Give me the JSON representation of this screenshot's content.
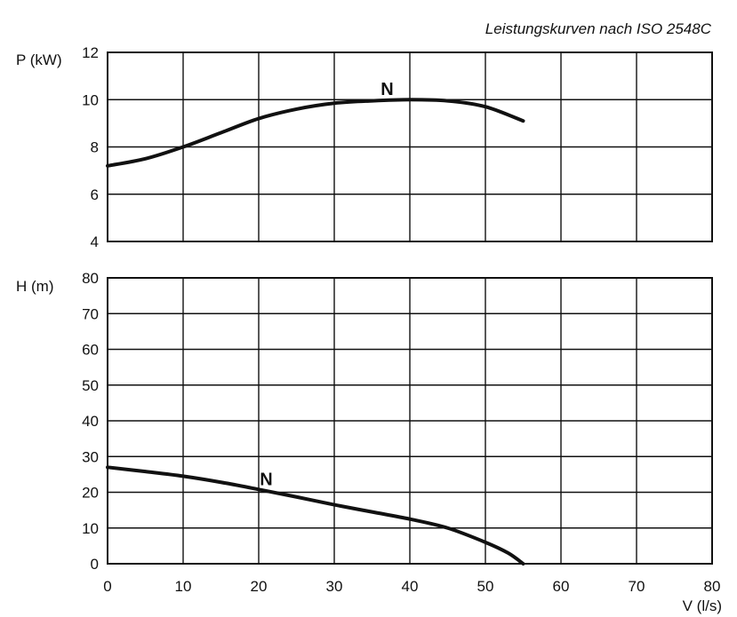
{
  "caption": "Leistungskurven nach ISO 2548C",
  "chart_data": [
    {
      "type": "line",
      "ylabel": "P (kW)",
      "xlim": [
        0,
        80
      ],
      "ylim": [
        4,
        12
      ],
      "xticks": [
        0,
        10,
        20,
        30,
        40,
        50,
        60,
        70,
        80
      ],
      "yticks": [
        4,
        6,
        8,
        10,
        12
      ],
      "grid": true,
      "series": [
        {
          "name": "N",
          "x": [
            0,
            5,
            10,
            15,
            20,
            25,
            30,
            35,
            40,
            45,
            50,
            55
          ],
          "y": [
            7.2,
            7.5,
            8.0,
            8.6,
            9.2,
            9.6,
            9.85,
            9.95,
            10.0,
            9.95,
            9.7,
            9.1
          ]
        }
      ],
      "annotations": [
        {
          "text": "N",
          "x": 37,
          "y": 10.2
        }
      ]
    },
    {
      "type": "line",
      "ylabel": "H (m)",
      "xlabel": "V (l/s)",
      "xlim": [
        0,
        80
      ],
      "ylim": [
        0,
        80
      ],
      "xticks": [
        0,
        10,
        20,
        30,
        40,
        50,
        60,
        70,
        80
      ],
      "yticks": [
        0,
        10,
        20,
        30,
        40,
        50,
        60,
        70,
        80
      ],
      "grid": true,
      "series": [
        {
          "name": "N",
          "x": [
            0,
            5,
            10,
            15,
            20,
            25,
            30,
            35,
            40,
            45,
            50,
            53,
            55
          ],
          "y": [
            27,
            25.8,
            24.5,
            22.8,
            20.8,
            18.7,
            16.5,
            14.5,
            12.5,
            10,
            6,
            3,
            0
          ]
        }
      ],
      "annotations": [
        {
          "text": "N",
          "x": 21,
          "y": 22
        }
      ]
    }
  ]
}
